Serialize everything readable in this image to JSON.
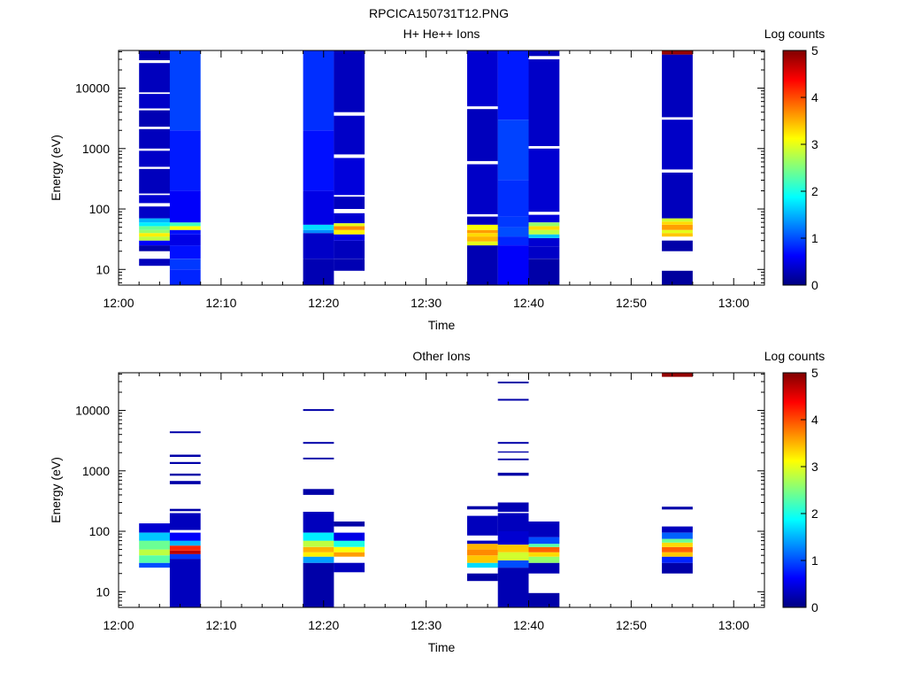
{
  "figure_title": "RPCICA150731T12.PNG",
  "chart_data": [
    {
      "type": "heatmap",
      "title": "H+ He++ Ions",
      "xlabel": "Time",
      "ylabel": "Energy (eV)",
      "y_scale": "log",
      "xlim": [
        "12:00",
        "13:03"
      ],
      "ylim": [
        5.5,
        42000
      ],
      "x_ticks": [
        "12:00",
        "12:10",
        "12:20",
        "12:30",
        "12:40",
        "12:50",
        "13:00"
      ],
      "y_ticks": [
        {
          "value": 10,
          "label": "10"
        },
        {
          "value": 100,
          "label": "100"
        },
        {
          "value": 1000,
          "label": "1000"
        },
        {
          "value": 10000,
          "label": "10000"
        }
      ],
      "colorbar": {
        "label": "Log counts",
        "range": [
          0,
          5
        ],
        "ticks": [
          "0",
          "1",
          "2",
          "3",
          "4",
          "5"
        ]
      },
      "columns": [
        {
          "t0": "12:02",
          "t1": "12:05",
          "segments": [
            {
              "lo": 11.5,
              "hi": 15,
              "v": 0.3
            },
            {
              "lo": 20,
              "hi": 25,
              "v": 0.2
            },
            {
              "lo": 25,
              "hi": 30,
              "v": 0.6
            },
            {
              "lo": 30,
              "hi": 35,
              "v": 2.8
            },
            {
              "lo": 35,
              "hi": 40,
              "v": 3.2
            },
            {
              "lo": 40,
              "hi": 45,
              "v": 2.6
            },
            {
              "lo": 45,
              "hi": 52,
              "v": 2.4
            },
            {
              "lo": 52,
              "hi": 60,
              "v": 1.8
            },
            {
              "lo": 60,
              "hi": 70,
              "v": 1.5
            },
            {
              "lo": 70,
              "hi": 110,
              "v": 0.35
            },
            {
              "lo": 125,
              "hi": 170,
              "v": 0.4
            },
            {
              "lo": 180,
              "hi": 460,
              "v": 0.3
            },
            {
              "lo": 500,
              "hi": 920,
              "v": 0.35
            },
            {
              "lo": 1000,
              "hi": 2100,
              "v": 0.3
            },
            {
              "lo": 2300,
              "hi": 4300,
              "v": 0.25
            },
            {
              "lo": 4600,
              "hi": 8000,
              "v": 0.35
            },
            {
              "lo": 8500,
              "hi": 26000,
              "v": 0.3
            },
            {
              "lo": 29000,
              "hi": 42000,
              "v": 0.25
            }
          ]
        },
        {
          "t0": "12:05",
          "t1": "12:08",
          "segments": [
            {
              "lo": 5.5,
              "hi": 10,
              "v": 0.8
            },
            {
              "lo": 10,
              "hi": 15,
              "v": 0.9
            },
            {
              "lo": 15,
              "hi": 25,
              "v": 0.7
            },
            {
              "lo": 25,
              "hi": 38,
              "v": 0.5
            },
            {
              "lo": 38,
              "hi": 45,
              "v": 0.7
            },
            {
              "lo": 45,
              "hi": 52,
              "v": 3.1
            },
            {
              "lo": 52,
              "hi": 60,
              "v": 2.2
            },
            {
              "lo": 60,
              "hi": 200,
              "v": 0.6
            },
            {
              "lo": 200,
              "hi": 2000,
              "v": 0.75
            },
            {
              "lo": 2000,
              "hi": 42000,
              "v": 0.95
            }
          ]
        },
        {
          "t0": "12:18",
          "t1": "12:21",
          "segments": [
            {
              "lo": 5.5,
              "hi": 15,
              "v": 0.25
            },
            {
              "lo": 15,
              "hi": 40,
              "v": 0.35
            },
            {
              "lo": 40,
              "hi": 45,
              "v": 1.3
            },
            {
              "lo": 45,
              "hi": 55,
              "v": 1.7
            },
            {
              "lo": 55,
              "hi": 200,
              "v": 0.5
            },
            {
              "lo": 200,
              "hi": 2000,
              "v": 0.7
            },
            {
              "lo": 2000,
              "hi": 42000,
              "v": 0.85
            }
          ]
        },
        {
          "t0": "12:21",
          "t1": "12:24",
          "segments": [
            {
              "lo": 9.5,
              "hi": 15,
              "v": 0.25
            },
            {
              "lo": 15,
              "hi": 30,
              "v": 0.3
            },
            {
              "lo": 30,
              "hi": 38,
              "v": 0.5
            },
            {
              "lo": 38,
              "hi": 45,
              "v": 3.2
            },
            {
              "lo": 45,
              "hi": 52,
              "v": 3.7
            },
            {
              "lo": 52,
              "hi": 58,
              "v": 3.0
            },
            {
              "lo": 58,
              "hi": 85,
              "v": 0.4
            },
            {
              "lo": 100,
              "hi": 160,
              "v": 0.3
            },
            {
              "lo": 170,
              "hi": 700,
              "v": 0.45
            },
            {
              "lo": 800,
              "hi": 3500,
              "v": 0.35
            },
            {
              "lo": 4000,
              "hi": 42000,
              "v": 0.3
            }
          ]
        },
        {
          "t0": "12:34",
          "t1": "12:37",
          "segments": [
            {
              "lo": 5.5,
              "hi": 25,
              "v": 0.25
            },
            {
              "lo": 25,
              "hi": 29,
              "v": 3.0
            },
            {
              "lo": 29,
              "hi": 35,
              "v": 3.5
            },
            {
              "lo": 35,
              "hi": 40,
              "v": 3.3
            },
            {
              "lo": 40,
              "hi": 45,
              "v": 3.6
            },
            {
              "lo": 45,
              "hi": 55,
              "v": 3.1
            },
            {
              "lo": 55,
              "hi": 75,
              "v": 0.3
            },
            {
              "lo": 82,
              "hi": 550,
              "v": 0.35
            },
            {
              "lo": 620,
              "hi": 4500,
              "v": 0.3
            },
            {
              "lo": 5000,
              "hi": 42000,
              "v": 0.4
            }
          ]
        },
        {
          "t0": "12:37",
          "t1": "12:40",
          "segments": [
            {
              "lo": 5.5,
              "hi": 25,
              "v": 0.6
            },
            {
              "lo": 25,
              "hi": 35,
              "v": 0.8
            },
            {
              "lo": 35,
              "hi": 50,
              "v": 1.0
            },
            {
              "lo": 50,
              "hi": 75,
              "v": 0.9
            },
            {
              "lo": 75,
              "hi": 300,
              "v": 0.85
            },
            {
              "lo": 300,
              "hi": 3000,
              "v": 0.95
            },
            {
              "lo": 3000,
              "hi": 42000,
              "v": 0.75
            }
          ]
        },
        {
          "t0": "12:40",
          "t1": "12:43",
          "segments": [
            {
              "lo": 5.5,
              "hi": 15,
              "v": 0.2
            },
            {
              "lo": 15,
              "hi": 24,
              "v": 0.35
            },
            {
              "lo": 24,
              "hi": 33,
              "v": 0.4
            },
            {
              "lo": 33,
              "hi": 38,
              "v": 1.6
            },
            {
              "lo": 38,
              "hi": 45,
              "v": 2.8
            },
            {
              "lo": 45,
              "hi": 52,
              "v": 3.3
            },
            {
              "lo": 52,
              "hi": 60,
              "v": 2.6
            },
            {
              "lo": 60,
              "hi": 80,
              "v": 0.45
            },
            {
              "lo": 90,
              "hi": 1000,
              "v": 0.4
            },
            {
              "lo": 1100,
              "hi": 30000,
              "v": 0.35
            },
            {
              "lo": 34000,
              "hi": 42000,
              "v": 0.3
            }
          ]
        },
        {
          "t0": "12:53",
          "t1": "12:56",
          "segments": [
            {
              "lo": 5.5,
              "hi": 9.5,
              "v": 0.15
            },
            {
              "lo": 20,
              "hi": 30,
              "v": 0.2
            },
            {
              "lo": 35,
              "hi": 40,
              "v": 3.4
            },
            {
              "lo": 40,
              "hi": 45,
              "v": 3.0
            },
            {
              "lo": 45,
              "hi": 55,
              "v": 3.6
            },
            {
              "lo": 55,
              "hi": 62,
              "v": 3.3
            },
            {
              "lo": 62,
              "hi": 70,
              "v": 2.9
            },
            {
              "lo": 70,
              "hi": 400,
              "v": 0.3
            },
            {
              "lo": 450,
              "hi": 3000,
              "v": 0.35
            },
            {
              "lo": 3300,
              "hi": 36000,
              "v": 0.3
            },
            {
              "lo": 36000,
              "hi": 42000,
              "v": 4.9
            }
          ]
        }
      ]
    },
    {
      "type": "heatmap",
      "title": "Other Ions",
      "xlabel": "Time",
      "ylabel": "Energy (eV)",
      "y_scale": "log",
      "xlim": [
        "12:00",
        "13:03"
      ],
      "ylim": [
        5.5,
        42000
      ],
      "x_ticks": [
        "12:00",
        "12:10",
        "12:20",
        "12:30",
        "12:40",
        "12:50",
        "13:00"
      ],
      "y_ticks": [
        {
          "value": 10,
          "label": "10"
        },
        {
          "value": 100,
          "label": "100"
        },
        {
          "value": 1000,
          "label": "1000"
        },
        {
          "value": 10000,
          "label": "10000"
        }
      ],
      "colorbar": {
        "label": "Log counts",
        "range": [
          0,
          5
        ],
        "ticks": [
          "0",
          "1",
          "2",
          "3",
          "4",
          "5"
        ]
      },
      "columns": [
        {
          "t0": "12:02",
          "t1": "12:05",
          "segments": [
            {
              "lo": 25,
              "hi": 30,
              "v": 1.0
            },
            {
              "lo": 30,
              "hi": 40,
              "v": 2.3
            },
            {
              "lo": 40,
              "hi": 50,
              "v": 2.8
            },
            {
              "lo": 50,
              "hi": 70,
              "v": 2.4
            },
            {
              "lo": 70,
              "hi": 95,
              "v": 1.6
            },
            {
              "lo": 95,
              "hi": 135,
              "v": 0.4
            }
          ]
        },
        {
          "t0": "12:05",
          "t1": "12:08",
          "segments": [
            {
              "lo": 5.5,
              "hi": 35,
              "v": 0.3
            },
            {
              "lo": 35,
              "hi": 42,
              "v": 0.9
            },
            {
              "lo": 42,
              "hi": 48,
              "v": 4.7
            },
            {
              "lo": 48,
              "hi": 58,
              "v": 4.2
            },
            {
              "lo": 58,
              "hi": 70,
              "v": 1.5
            },
            {
              "lo": 70,
              "hi": 95,
              "v": 0.6
            },
            {
              "lo": 105,
              "hi": 200,
              "v": 0.3
            },
            {
              "lo": 215,
              "hi": 235,
              "v": 0.2
            },
            {
              "lo": 600,
              "hi": 680,
              "v": 0.2
            },
            {
              "lo": 830,
              "hi": 900,
              "v": 0.2
            },
            {
              "lo": 1300,
              "hi": 1400,
              "v": 0.2
            },
            {
              "lo": 1700,
              "hi": 1850,
              "v": 0.2
            },
            {
              "lo": 4200,
              "hi": 4500,
              "v": 0.2
            }
          ]
        },
        {
          "t0": "12:18",
          "t1": "12:21",
          "segments": [
            {
              "lo": 5.5,
              "hi": 30,
              "v": 0.2
            },
            {
              "lo": 30,
              "hi": 38,
              "v": 1.4
            },
            {
              "lo": 38,
              "hi": 45,
              "v": 3.2
            },
            {
              "lo": 45,
              "hi": 55,
              "v": 3.5
            },
            {
              "lo": 55,
              "hi": 70,
              "v": 2.8
            },
            {
              "lo": 70,
              "hi": 95,
              "v": 1.8
            },
            {
              "lo": 95,
              "hi": 210,
              "v": 0.3
            },
            {
              "lo": 400,
              "hi": 500,
              "v": 0.2
            },
            {
              "lo": 1550,
              "hi": 1650,
              "v": 0.2
            },
            {
              "lo": 2800,
              "hi": 3000,
              "v": 0.2
            },
            {
              "lo": 9800,
              "hi": 10500,
              "v": 0.2
            }
          ]
        },
        {
          "t0": "12:21",
          "t1": "12:24",
          "segments": [
            {
              "lo": 21,
              "hi": 30,
              "v": 0.3
            },
            {
              "lo": 38,
              "hi": 45,
              "v": 3.6
            },
            {
              "lo": 45,
              "hi": 55,
              "v": 3.1
            },
            {
              "lo": 55,
              "hi": 70,
              "v": 2.0
            },
            {
              "lo": 70,
              "hi": 95,
              "v": 0.5
            },
            {
              "lo": 120,
              "hi": 145,
              "v": 0.2
            }
          ]
        },
        {
          "t0": "12:34",
          "t1": "12:37",
          "segments": [
            {
              "lo": 15,
              "hi": 20,
              "v": 0.2
            },
            {
              "lo": 25,
              "hi": 30,
              "v": 1.7
            },
            {
              "lo": 30,
              "hi": 40,
              "v": 3.4
            },
            {
              "lo": 40,
              "hi": 50,
              "v": 3.7
            },
            {
              "lo": 50,
              "hi": 62,
              "v": 3.5
            },
            {
              "lo": 62,
              "hi": 70,
              "v": 0.3
            },
            {
              "lo": 85,
              "hi": 180,
              "v": 0.3
            },
            {
              "lo": 230,
              "hi": 260,
              "v": 0.2
            }
          ]
        },
        {
          "t0": "12:37",
          "t1": "12:40",
          "segments": [
            {
              "lo": 5.5,
              "hi": 25,
              "v": 0.25
            },
            {
              "lo": 25,
              "hi": 33,
              "v": 1.0
            },
            {
              "lo": 33,
              "hi": 45,
              "v": 2.9
            },
            {
              "lo": 45,
              "hi": 60,
              "v": 3.4
            },
            {
              "lo": 60,
              "hi": 100,
              "v": 0.4
            },
            {
              "lo": 100,
              "hi": 200,
              "v": 0.3
            },
            {
              "lo": 210,
              "hi": 300,
              "v": 0.25
            },
            {
              "lo": 830,
              "hi": 930,
              "v": 0.2
            },
            {
              "lo": 1500,
              "hi": 1600,
              "v": 0.2
            },
            {
              "lo": 2000,
              "hi": 2100,
              "v": 0.2
            },
            {
              "lo": 2800,
              "hi": 3000,
              "v": 0.2
            },
            {
              "lo": 14500,
              "hi": 15500,
              "v": 0.2
            },
            {
              "lo": 28000,
              "hi": 30000,
              "v": 0.2
            }
          ]
        },
        {
          "t0": "12:40",
          "t1": "12:43",
          "segments": [
            {
              "lo": 5.5,
              "hi": 9.5,
              "v": 0.2
            },
            {
              "lo": 20,
              "hi": 30,
              "v": 0.25
            },
            {
              "lo": 30,
              "hi": 38,
              "v": 2.6
            },
            {
              "lo": 38,
              "hi": 45,
              "v": 3.3
            },
            {
              "lo": 45,
              "hi": 55,
              "v": 3.9
            },
            {
              "lo": 55,
              "hi": 62,
              "v": 2.3
            },
            {
              "lo": 62,
              "hi": 80,
              "v": 1.0
            },
            {
              "lo": 80,
              "hi": 145,
              "v": 0.3
            }
          ]
        },
        {
          "t0": "12:53",
          "t1": "12:56",
          "segments": [
            {
              "lo": 20,
              "hi": 30,
              "v": 0.2
            },
            {
              "lo": 30,
              "hi": 38,
              "v": 0.8
            },
            {
              "lo": 38,
              "hi": 45,
              "v": 3.4
            },
            {
              "lo": 45,
              "hi": 55,
              "v": 3.9
            },
            {
              "lo": 55,
              "hi": 65,
              "v": 3.3
            },
            {
              "lo": 65,
              "hi": 75,
              "v": 2.4
            },
            {
              "lo": 75,
              "hi": 95,
              "v": 1.1
            },
            {
              "lo": 95,
              "hi": 120,
              "v": 0.3
            },
            {
              "lo": 230,
              "hi": 255,
              "v": 0.2
            },
            {
              "lo": 36000,
              "hi": 42000,
              "v": 4.9
            }
          ]
        }
      ]
    }
  ]
}
